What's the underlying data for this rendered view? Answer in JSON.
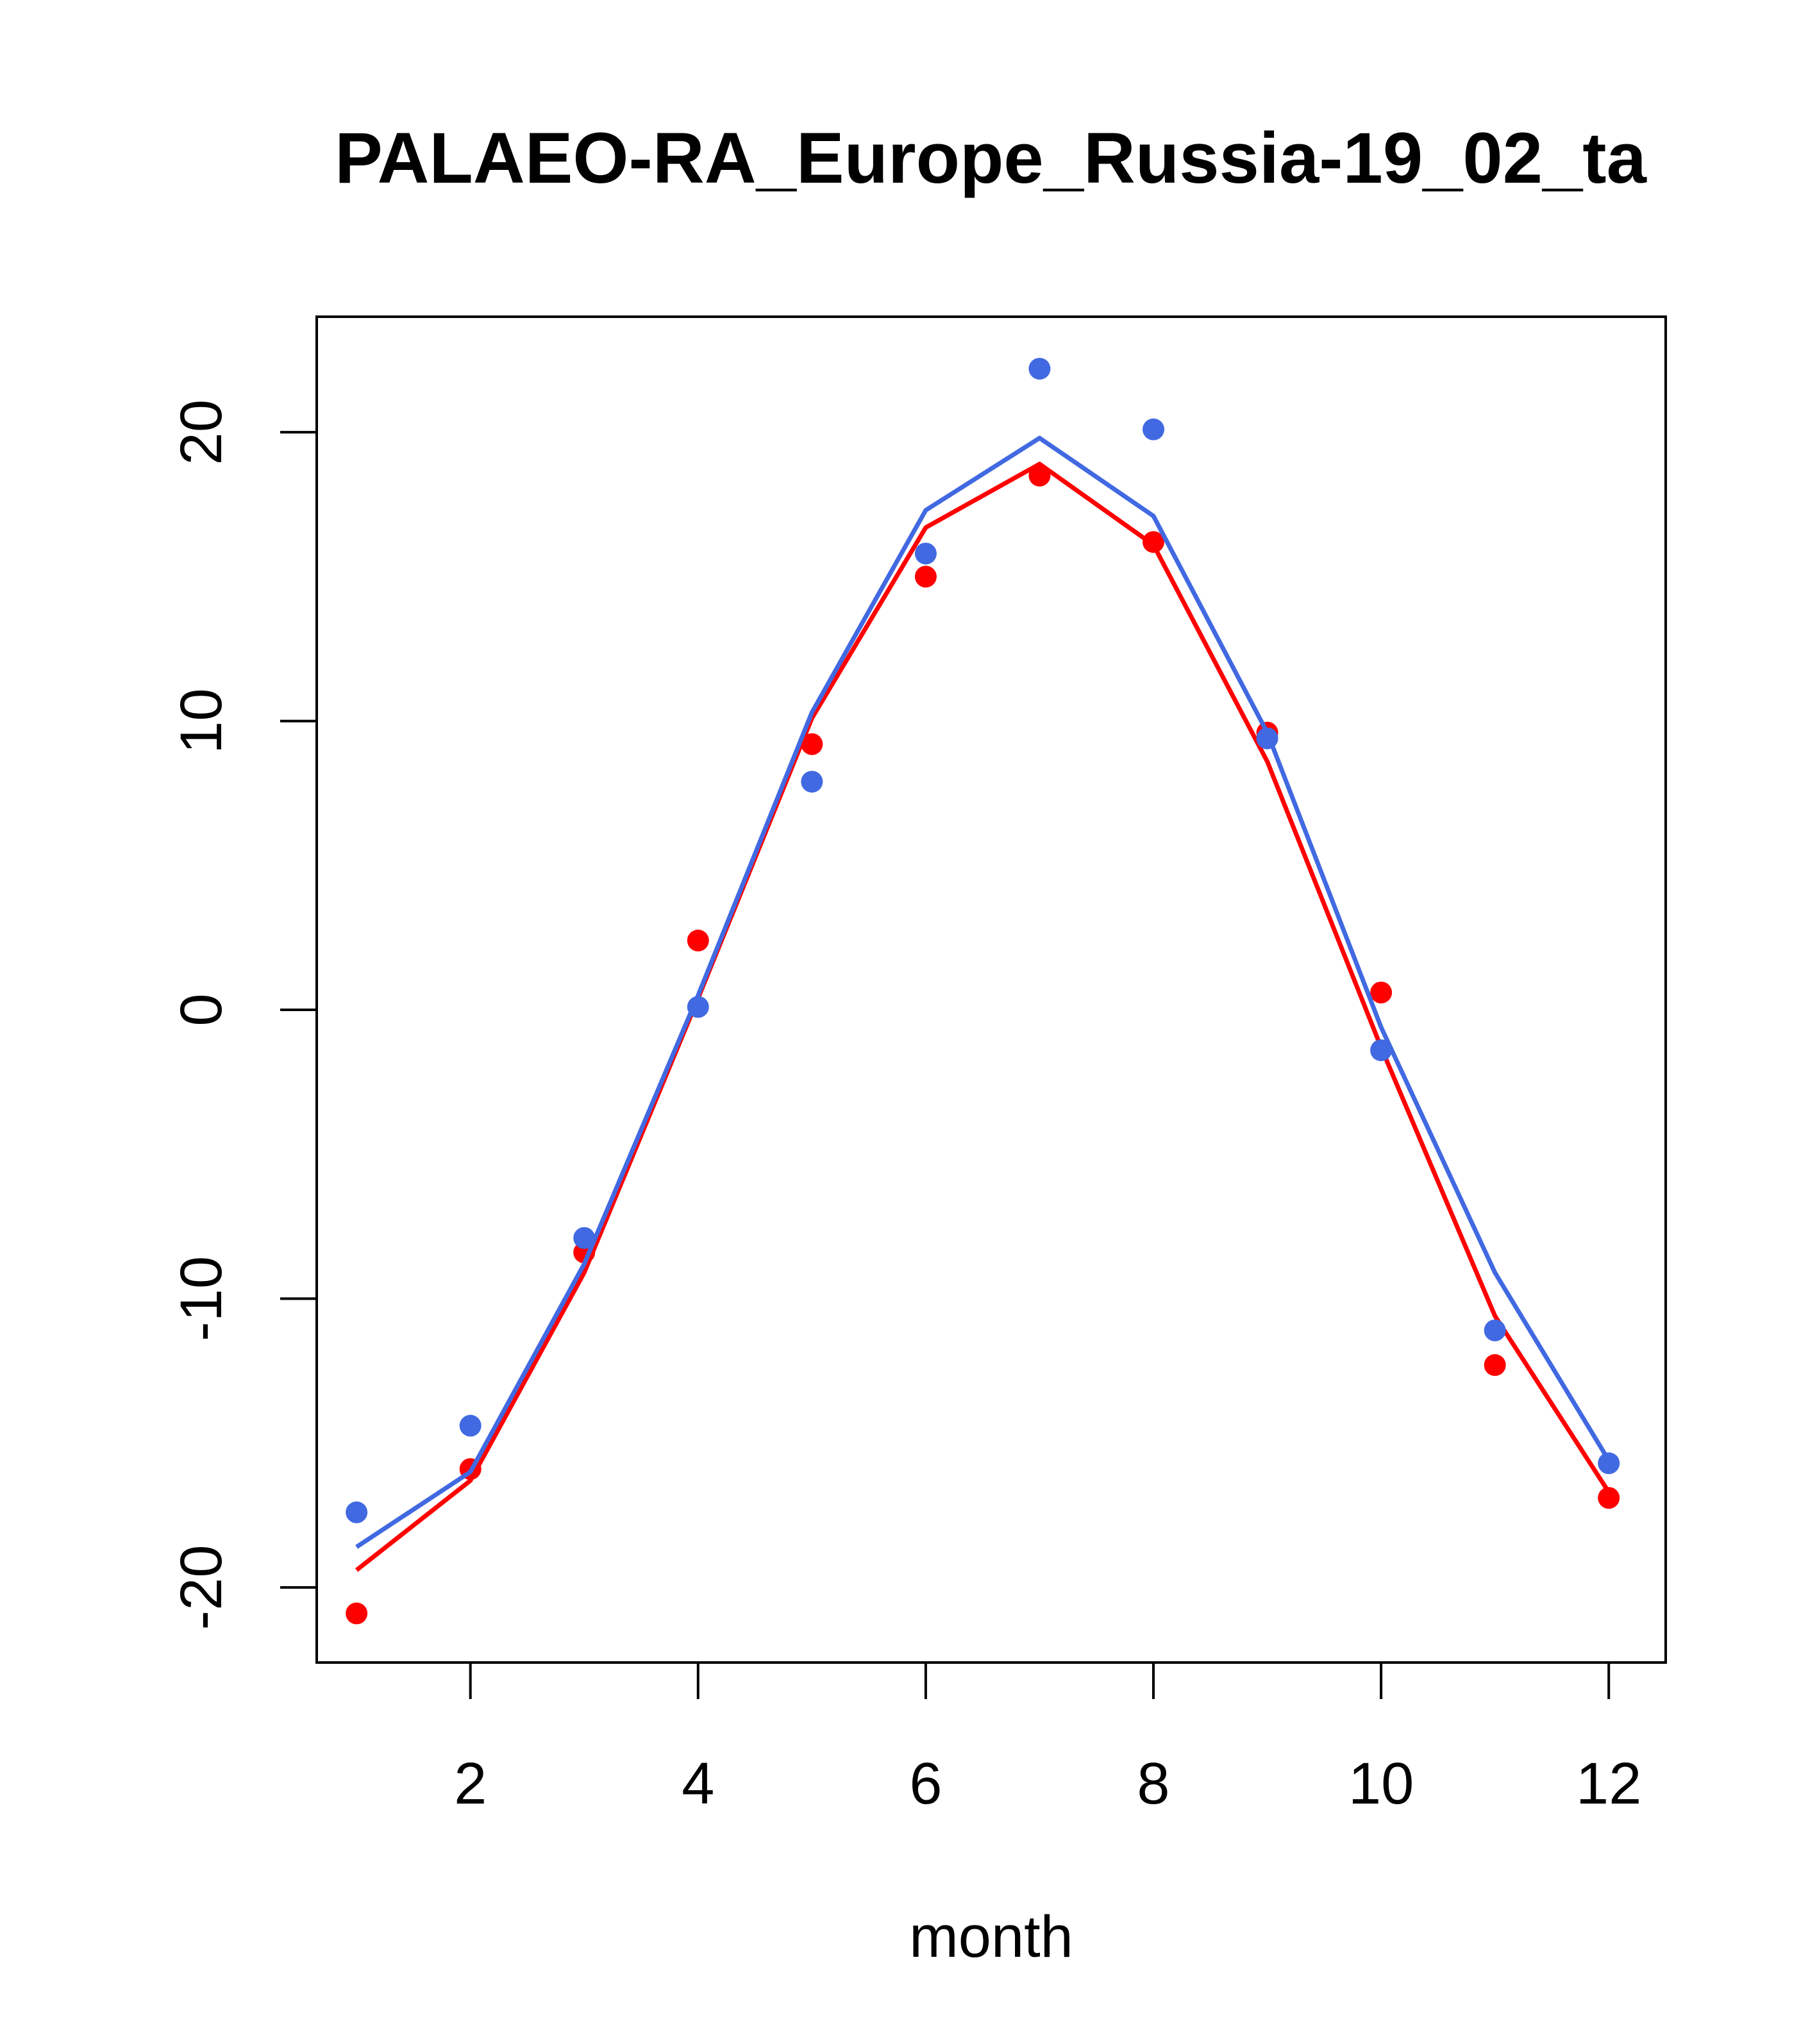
{
  "chart_data": {
    "type": "line",
    "title": "PALAEO-RA_Europe_Russia-19_02_ta",
    "xlabel": "month",
    "ylabel": "",
    "x": [
      1,
      2,
      3,
      4,
      5,
      6,
      7,
      8,
      9,
      10,
      11,
      12
    ],
    "xlim": [
      0.65,
      12.5
    ],
    "ylim": [
      -22.6,
      24.0
    ],
    "x_ticks": [
      2,
      4,
      6,
      8,
      10,
      12
    ],
    "y_ticks": [
      -20,
      -10,
      0,
      10,
      20
    ],
    "grid": false,
    "legend": "none",
    "series": [
      {
        "color": "#ff0000",
        "line": [
          -19.4,
          -16.3,
          -9.1,
          0.4,
          10.1,
          16.7,
          18.9,
          16.1,
          8.6,
          -1.3,
          -10.6,
          -16.7
        ],
        "points": [
          -20.9,
          -15.9,
          -8.4,
          2.4,
          9.2,
          15.0,
          18.5,
          16.2,
          9.6,
          0.6,
          -12.3,
          -16.9
        ]
      },
      {
        "color": "#4169e1",
        "line": [
          -18.6,
          -16.0,
          -8.8,
          0.5,
          10.3,
          17.3,
          19.8,
          17.1,
          9.6,
          -0.6,
          -9.1,
          -15.6
        ],
        "points": [
          -17.4,
          -14.4,
          -7.9,
          0.1,
          7.9,
          15.8,
          22.2,
          20.1,
          9.4,
          -1.4,
          -11.1,
          -15.7
        ]
      }
    ]
  }
}
